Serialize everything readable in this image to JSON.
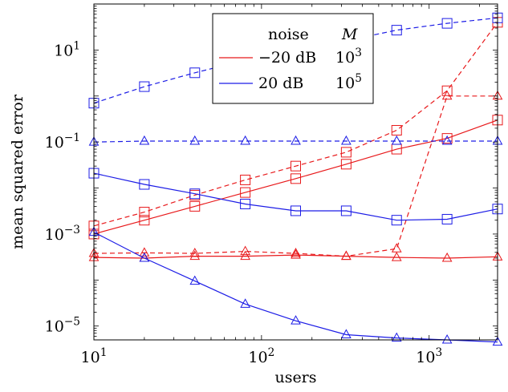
{
  "chart_data": {
    "type": "line",
    "xlabel": "users",
    "ylabel": "mean squared error",
    "xscale": "log",
    "yscale": "log",
    "xlim": [
      10,
      2560
    ],
    "ylim": [
      5e-06,
      100
    ],
    "x_ticks": [
      {
        "value": 10,
        "base": "10",
        "exp": "1"
      },
      {
        "value": 100,
        "base": "10",
        "exp": "2"
      },
      {
        "value": 1000,
        "base": "10",
        "exp": "3"
      }
    ],
    "y_ticks": [
      {
        "value": 1e-05,
        "base": "10",
        "exp": "−5"
      },
      {
        "value": 0.001,
        "base": "10",
        "exp": "−3"
      },
      {
        "value": 0.1,
        "base": "10",
        "exp": "−1"
      },
      {
        "value": 10,
        "base": "10",
        "exp": "1"
      }
    ],
    "grid": false,
    "legend": {
      "placement": "top-center",
      "header_noise": "noise",
      "header_m": "M",
      "rows": [
        {
          "noise": "−20 dB",
          "m_base": "10",
          "m_exp": "3",
          "color": "#e8191b"
        },
        {
          "noise": "20 dB",
          "m_base": "10",
          "m_exp": "5",
          "color": "#1c1ce6"
        }
      ]
    },
    "x": [
      10,
      20,
      40,
      80,
      160,
      320,
      640,
      1280,
      2560
    ],
    "series": [
      {
        "color": "#e8191b",
        "dash": true,
        "marker": "square",
        "values": [
          0.0015,
          0.003,
          0.007,
          0.015,
          0.03,
          0.06,
          0.18,
          1.3,
          40
        ]
      },
      {
        "color": "#e8191b",
        "dash": false,
        "marker": "square",
        "values": [
          0.001,
          0.002,
          0.004,
          0.008,
          0.016,
          0.033,
          0.07,
          0.12,
          0.3
        ]
      },
      {
        "color": "#e8191b",
        "dash": true,
        "marker": "triangle",
        "values": [
          0.00038,
          0.00039,
          0.00038,
          0.00042,
          0.00038,
          0.00033,
          0.00048,
          1.0,
          1.0
        ]
      },
      {
        "color": "#e8191b",
        "dash": false,
        "marker": "triangle",
        "values": [
          0.00031,
          0.0003,
          0.00033,
          0.00033,
          0.00035,
          0.00033,
          0.00031,
          0.0003,
          0.00032
        ]
      },
      {
        "color": "#1c1ce6",
        "dash": true,
        "marker": "square",
        "values": [
          0.7,
          1.6,
          3.2,
          6,
          10,
          16,
          27,
          38,
          50
        ]
      },
      {
        "color": "#1c1ce6",
        "dash": false,
        "marker": "square",
        "values": [
          0.021,
          0.012,
          0.0075,
          0.0045,
          0.0032,
          0.0032,
          0.002,
          0.0021,
          0.0035
        ]
      },
      {
        "color": "#1c1ce6",
        "dash": true,
        "marker": "triangle",
        "values": [
          0.1,
          0.105,
          0.105,
          0.105,
          0.105,
          0.105,
          0.105,
          0.105,
          0.105
        ]
      },
      {
        "color": "#1c1ce6",
        "dash": false,
        "marker": "triangle",
        "values": [
          0.0011,
          0.0003,
          9.5e-05,
          3e-05,
          1.3e-05,
          6.5e-06,
          5.5e-06,
          5e-06,
          4.5e-06
        ]
      }
    ]
  }
}
